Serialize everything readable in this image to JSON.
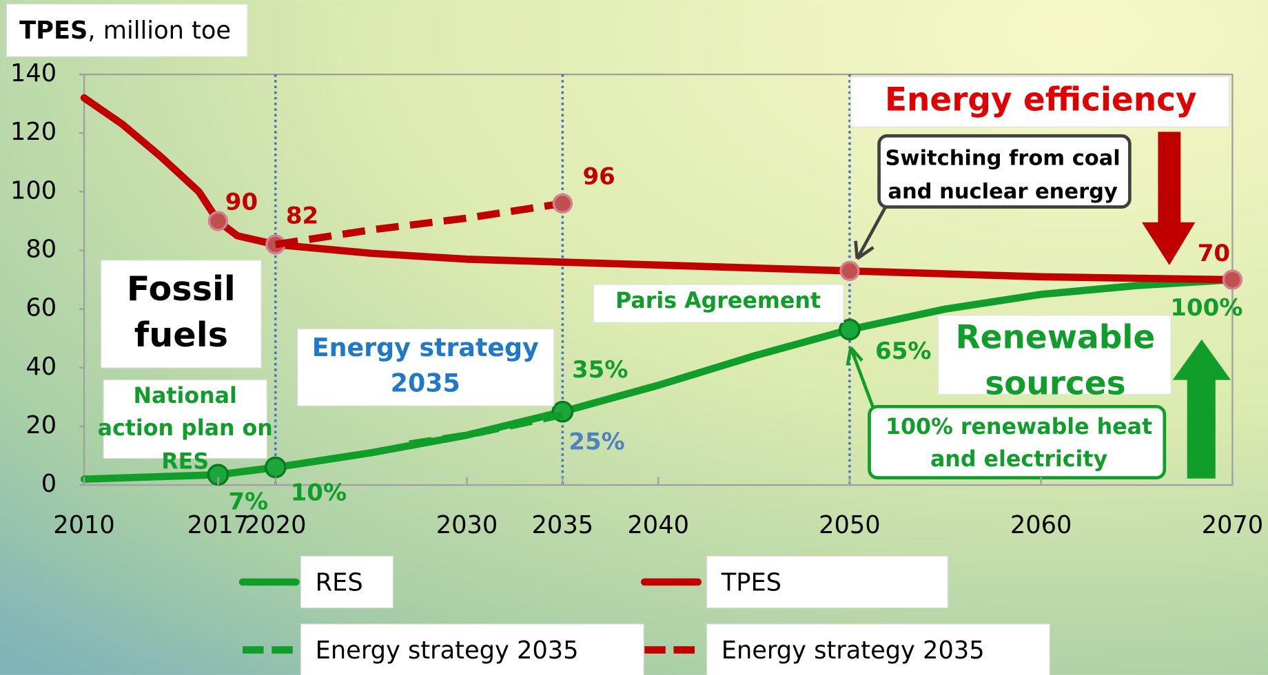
{
  "chart_data": {
    "type": "line",
    "ylabel_parts": [
      "TPES",
      ", million toe"
    ],
    "xlim": [
      2010,
      2070
    ],
    "xticks": [
      2010,
      2017,
      2020,
      2030,
      2035,
      2040,
      2050,
      2060,
      2070
    ],
    "ylim": [
      0,
      140
    ],
    "yticks": [
      0,
      20,
      40,
      60,
      80,
      100,
      120,
      140
    ],
    "grid": false,
    "vlines": [
      2020,
      2035,
      2050
    ],
    "vline_color": "#4472c4",
    "series": [
      {
        "name": "RES",
        "color": "#109d2a",
        "dash": false,
        "x": [
          2010,
          2017,
          2020,
          2025,
          2030,
          2035,
          2040,
          2045,
          2050,
          2055,
          2060,
          2065,
          2070
        ],
        "values": [
          2,
          3.5,
          6,
          11,
          17,
          25,
          34,
          44,
          53,
          60,
          65,
          68,
          70
        ],
        "markers": [
          1,
          2,
          5,
          8
        ]
      },
      {
        "name": "TPES",
        "color": "#c00000",
        "dash": false,
        "x": [
          2010,
          2012,
          2014,
          2016,
          2017,
          2018,
          2020,
          2025,
          2030,
          2035,
          2040,
          2050,
          2060,
          2070
        ],
        "values": [
          132,
          123,
          112,
          100,
          90,
          85,
          82,
          79,
          77,
          76,
          75,
          73,
          71,
          70
        ],
        "value_labels": [
          null,
          null,
          null,
          null,
          "90",
          null,
          "82",
          null,
          null,
          null,
          null,
          null,
          null,
          "70"
        ],
        "markers": [
          4,
          6,
          11,
          13
        ]
      },
      {
        "name": "Energy strategy 2035",
        "color": "#109d2a",
        "dash": true,
        "x": [
          2027,
          2030,
          2035
        ],
        "values": [
          14,
          17,
          24
        ],
        "markers": []
      },
      {
        "name": "Energy strategy 2035",
        "color": "#c00000",
        "dash": true,
        "x": [
          2020,
          2025,
          2030,
          2035
        ],
        "values": [
          82,
          87,
          91,
          96
        ],
        "value_labels": [
          null,
          null,
          null,
          "96"
        ],
        "markers": [
          3
        ]
      }
    ],
    "annotations": [
      {
        "text": "7%",
        "color": "#109d2a"
      },
      {
        "text": "10%",
        "color": "#109d2a"
      },
      {
        "text": "35%",
        "color": "#109d2a"
      },
      {
        "text": "25%",
        "color": "#4f81bd"
      },
      {
        "text": "65%",
        "color": "#109d2a"
      },
      {
        "text": "100%",
        "color": "#109d2a"
      }
    ],
    "boxes": [
      {
        "lines": [
          "Energy efficiency"
        ],
        "color": "#e00000"
      },
      {
        "lines": [
          "Switching from coal",
          "and nuclear energy"
        ],
        "color": "#000000"
      },
      {
        "lines": [
          "Fossil",
          "fuels"
        ],
        "color": "#000000"
      },
      {
        "lines": [
          "Renewable",
          "sources"
        ],
        "color": "#109d2a"
      },
      {
        "lines": [
          "Paris Agreement"
        ],
        "color": "#109d2a"
      },
      {
        "lines": [
          "Energy strategy",
          "2035"
        ],
        "color": "#1f78c8"
      },
      {
        "lines": [
          "National",
          "action plan on",
          "RES"
        ],
        "color": "#109d2a"
      },
      {
        "lines": [
          "100% renewable heat",
          "and electricity"
        ],
        "color": "#109d2a"
      }
    ]
  }
}
